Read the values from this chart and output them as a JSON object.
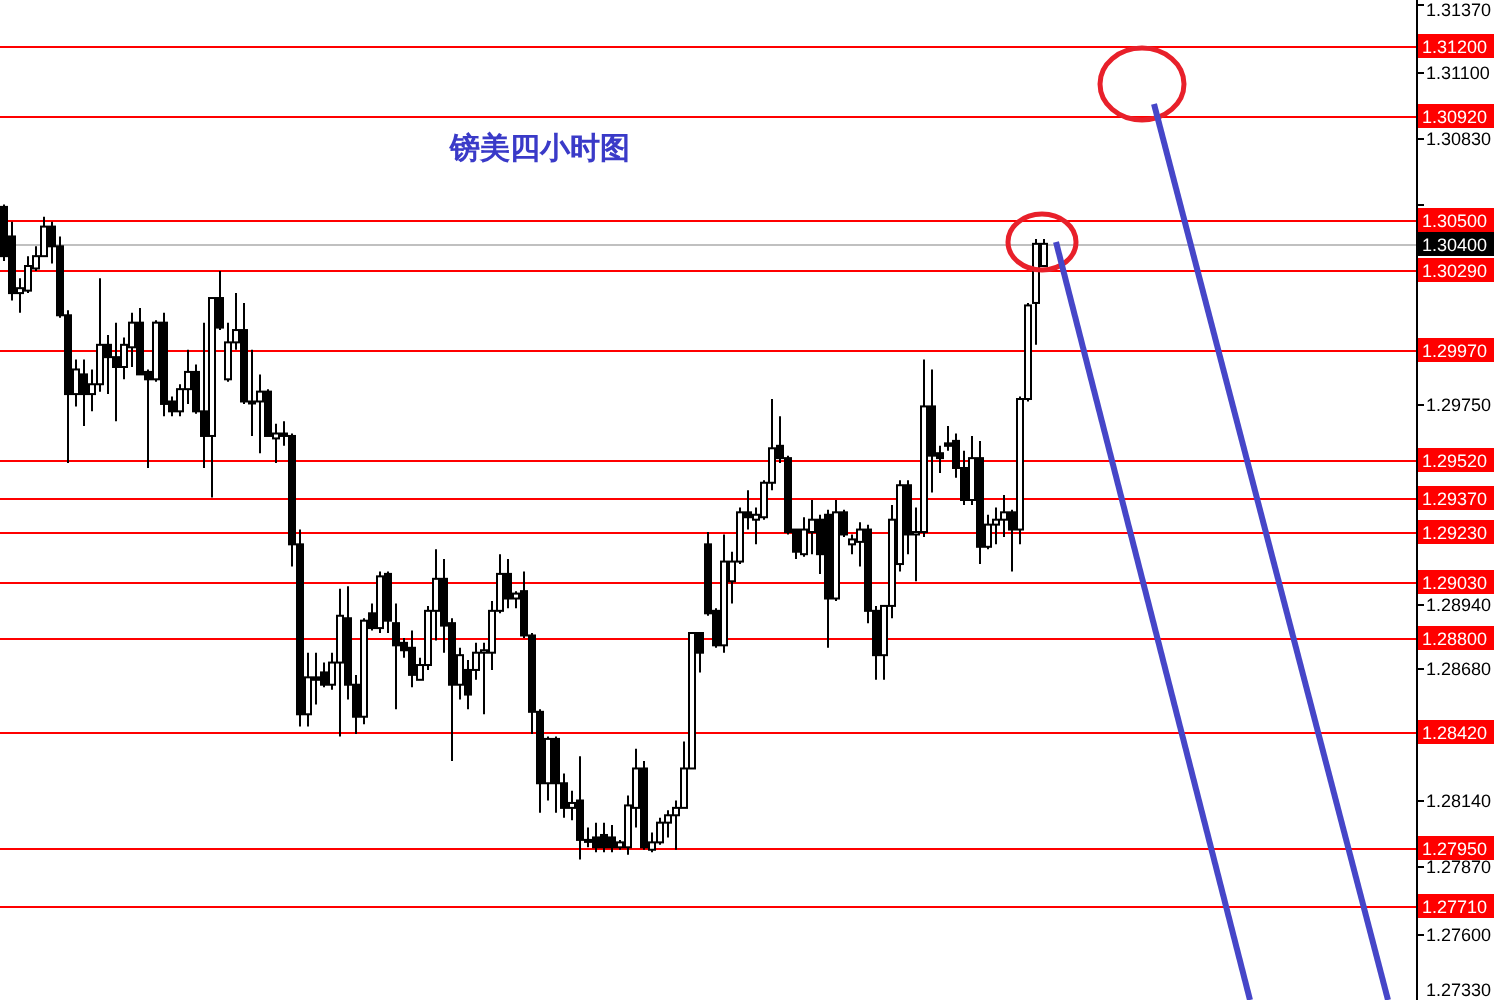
{
  "chart_data": {
    "type": "candlestick",
    "title": "镑美四小时图",
    "tick_labels": "y",
    "categories": [
      null,
      null,
      null,
      null,
      null,
      null,
      null,
      null,
      null,
      null,
      null,
      null,
      null,
      null,
      null,
      null,
      null,
      null,
      null,
      null,
      null,
      null,
      null,
      null,
      null,
      null,
      null,
      null,
      null,
      null,
      null,
      null,
      null,
      null,
      null,
      null,
      null,
      null,
      null,
      null,
      null,
      null,
      null,
      null,
      null,
      null,
      null,
      null,
      null,
      null,
      null,
      null,
      null,
      null,
      null,
      null,
      null,
      null,
      null,
      null,
      null,
      null,
      null,
      null,
      null,
      null,
      null,
      null,
      null,
      null,
      null,
      null,
      null,
      null,
      null,
      null,
      null,
      null,
      null,
      null,
      null,
      null,
      null,
      null,
      null,
      null,
      null,
      null,
      null,
      null,
      null,
      null,
      null,
      null,
      null,
      null,
      null,
      null,
      null,
      null,
      null,
      null,
      null,
      null,
      null,
      null,
      null,
      null,
      null,
      null,
      null,
      null,
      null,
      null,
      null,
      null,
      null,
      null,
      null,
      null,
      null,
      null,
      null,
      null,
      null,
      null,
      null,
      null,
      null,
      null,
      null,
      null,
      null,
      null,
      null,
      null,
      null,
      null,
      null,
      null,
      null,
      null,
      null,
      null,
      null,
      null,
      null,
      null,
      null,
      null,
      null,
      null,
      null,
      null,
      null,
      null,
      null,
      null,
      null,
      null,
      null,
      null,
      null,
      null,
      null,
      null,
      null,
      null,
      null,
      null,
      null,
      null,
      null,
      null,
      null,
      null,
      null
    ],
    "ohlc": [
      [
        1.3055,
        1.3056,
        1.3033,
        1.3035
      ],
      [
        1.3043,
        1.3049,
        1.3017,
        1.302
      ],
      [
        1.302,
        1.3026,
        1.3012,
        1.3022
      ],
      [
        1.3021,
        1.3035,
        1.302,
        1.3031
      ],
      [
        1.303,
        1.3039,
        1.3029,
        1.3035
      ],
      [
        1.3035,
        1.3051,
        1.3035,
        1.3047
      ],
      [
        1.3047,
        1.3049,
        1.3032,
        1.3039
      ],
      [
        1.3039,
        1.3043,
        1.301,
        1.3011
      ],
      [
        1.3011,
        1.3013,
        1.2951,
        1.2979
      ],
      [
        1.2979,
        1.2993,
        1.2974,
        1.2989
      ],
      [
        1.2987,
        1.2993,
        1.2966,
        1.2979
      ],
      [
        1.2979,
        1.2989,
        1.2972,
        1.2983
      ],
      [
        1.2983,
        1.3026,
        1.298,
        1.2999
      ],
      [
        1.2999,
        1.3003,
        1.2979,
        1.2994
      ],
      [
        1.2994,
        1.3008,
        1.2968,
        1.299
      ],
      [
        1.299,
        1.3002,
        1.2985,
        1.2999
      ],
      [
        1.2998,
        1.3012,
        1.299,
        1.3008
      ],
      [
        1.3008,
        1.3014,
        1.2987,
        1.2987
      ],
      [
        1.2988,
        1.2989,
        1.2949,
        1.2985
      ],
      [
        1.2985,
        1.3009,
        1.2984,
        1.3008
      ],
      [
        1.3008,
        1.3012,
        1.297,
        1.2975
      ],
      [
        1.2976,
        1.2978,
        1.297,
        1.2972
      ],
      [
        1.2972,
        1.2983,
        1.297,
        1.2981
      ],
      [
        1.2981,
        1.2997,
        1.2975,
        1.2988
      ],
      [
        1.2988,
        1.2991,
        1.2971,
        1.2972
      ],
      [
        1.2972,
        1.3008,
        1.2949,
        1.2962
      ],
      [
        1.2962,
        1.3018,
        1.2937,
        1.3018
      ],
      [
        1.3018,
        1.3029,
        1.3005,
        1.3006
      ],
      [
        1.2985,
        1.3008,
        1.2984,
        1.3
      ],
      [
        1.3,
        1.302,
        1.2997,
        1.3005
      ],
      [
        1.3005,
        1.3016,
        1.2975,
        1.2976
      ],
      [
        1.2976,
        1.2997,
        1.2962,
        1.2976
      ],
      [
        1.2976,
        1.2987,
        1.2955,
        1.298
      ],
      [
        1.298,
        1.2981,
        1.2962,
        1.2962
      ],
      [
        1.2961,
        1.2967,
        1.2951,
        1.2963
      ],
      [
        1.2963,
        1.2968,
        1.2958,
        1.2962
      ],
      [
        1.2962,
        1.2963,
        1.2909,
        1.2918
      ],
      [
        1.2918,
        1.2924,
        1.2844,
        1.2849
      ],
      [
        1.2849,
        1.2874,
        1.2844,
        1.2864
      ],
      [
        1.2864,
        1.2874,
        1.2853,
        1.2863
      ],
      [
        1.2866,
        1.287,
        1.286,
        1.2861
      ],
      [
        1.2861,
        1.2874,
        1.2859,
        1.287
      ],
      [
        1.287,
        1.29,
        1.284,
        1.2889
      ],
      [
        1.2888,
        1.2901,
        1.2855,
        1.2861
      ],
      [
        1.2861,
        1.2865,
        1.2841,
        1.2848
      ],
      [
        1.2848,
        1.2888,
        1.2845,
        1.2887
      ],
      [
        1.289,
        1.2894,
        1.2883,
        1.2884
      ],
      [
        1.2884,
        1.2907,
        1.2882,
        1.2905
      ],
      [
        1.2906,
        1.2907,
        1.2882,
        1.2887
      ],
      [
        1.2886,
        1.2894,
        1.2851,
        1.2877
      ],
      [
        1.2878,
        1.288,
        1.2872,
        1.2875
      ],
      [
        1.2876,
        1.2883,
        1.286,
        1.2865
      ],
      [
        1.2863,
        1.2872,
        1.2863,
        1.2869
      ],
      [
        1.2869,
        1.2893,
        1.2867,
        1.2891
      ],
      [
        1.2891,
        1.2916,
        1.2879,
        1.2904
      ],
      [
        1.2904,
        1.2912,
        1.2874,
        1.2885
      ],
      [
        1.2886,
        1.2888,
        1.283,
        1.2861
      ],
      [
        1.2861,
        1.2876,
        1.2855,
        1.2873
      ],
      [
        1.2867,
        1.2871,
        1.2851,
        1.2857
      ],
      [
        1.2867,
        1.2878,
        1.2863,
        1.2874
      ],
      [
        1.2874,
        1.2878,
        1.2849,
        1.2875
      ],
      [
        1.2874,
        1.2895,
        1.2867,
        1.2891
      ],
      [
        1.2891,
        1.2914,
        1.289,
        1.2906
      ],
      [
        1.2906,
        1.2912,
        1.2892,
        1.2896
      ],
      [
        1.2896,
        1.2899,
        1.2892,
        1.2898
      ],
      [
        1.2899,
        1.2907,
        1.288,
        1.2881
      ],
      [
        1.2881,
        1.2882,
        1.2841,
        1.285
      ],
      [
        1.285,
        1.2851,
        1.2809,
        1.2821
      ],
      [
        1.2821,
        1.284,
        1.2814,
        1.2839
      ],
      [
        1.2839,
        1.284,
        1.2809,
        1.2821
      ],
      [
        1.2821,
        1.2825,
        1.2807,
        1.2811
      ],
      [
        1.2811,
        1.2818,
        1.2806,
        1.2813
      ],
      [
        1.2814,
        1.2832,
        1.279,
        1.2798
      ],
      [
        1.2798,
        1.2803,
        1.2795,
        1.2798
      ],
      [
        1.2799,
        1.2805,
        1.2793,
        1.2795
      ],
      [
        1.28,
        1.2805,
        1.2793,
        1.2795
      ],
      [
        1.2799,
        1.2804,
        1.2793,
        1.2795
      ],
      [
        1.2795,
        1.2798,
        1.2794,
        1.2797
      ],
      [
        1.2795,
        1.2816,
        1.2792,
        1.2812
      ],
      [
        1.2811,
        1.2835,
        1.2803,
        1.2827
      ],
      [
        1.2827,
        1.283,
        1.2794,
        1.2795
      ],
      [
        1.2794,
        1.2801,
        1.2793,
        1.2797
      ],
      [
        1.2797,
        1.2807,
        1.2796,
        1.2805
      ],
      [
        1.2805,
        1.281,
        1.2799,
        1.2808
      ],
      [
        1.2808,
        1.2814,
        1.2794,
        1.2811
      ],
      [
        1.2811,
        1.2838,
        1.2811,
        1.2827
      ],
      [
        1.2827,
        1.2882,
        1.2827,
        1.2882
      ],
      [
        1.2882,
        1.2882,
        1.2866,
        1.2874
      ],
      [
        1.2918,
        1.2923,
        1.2889,
        1.289
      ],
      [
        1.2891,
        1.2892,
        1.2876,
        1.2877
      ],
      [
        1.2877,
        1.2922,
        1.2874,
        1.2911
      ],
      [
        1.2903,
        1.2915,
        1.2894,
        1.2911
      ],
      [
        1.2911,
        1.2933,
        1.291,
        1.2931
      ],
      [
        1.2931,
        1.294,
        1.2924,
        1.2929
      ],
      [
        1.2928,
        1.2933,
        1.2918,
        1.293
      ],
      [
        1.2929,
        1.2944,
        1.2928,
        1.2943
      ],
      [
        1.2943,
        1.2977,
        1.294,
        1.2957
      ],
      [
        1.2958,
        1.297,
        1.2951,
        1.2953
      ],
      [
        1.2953,
        1.2954,
        1.2922,
        1.2923
      ],
      [
        1.2924,
        1.2924,
        1.2912,
        1.2915
      ],
      [
        1.2914,
        1.2929,
        1.2913,
        1.2924
      ],
      [
        1.2923,
        1.2936,
        1.2914,
        1.2928
      ],
      [
        1.2928,
        1.293,
        1.2906,
        1.2914
      ],
      [
        1.293,
        1.2932,
        1.2876,
        1.2896
      ],
      [
        1.2896,
        1.2936,
        1.2895,
        1.2931
      ],
      [
        1.2931,
        1.2932,
        1.2921,
        1.2922
      ],
      [
        1.2918,
        1.2922,
        1.2914,
        1.292
      ],
      [
        1.2919,
        1.2927,
        1.2909,
        1.2924
      ],
      [
        1.2924,
        1.2926,
        1.2886,
        1.2891
      ],
      [
        1.2891,
        1.2893,
        1.2863,
        1.2873
      ],
      [
        1.2873,
        1.2893,
        1.2863,
        1.2893
      ],
      [
        1.2893,
        1.2934,
        1.2888,
        1.2928
      ],
      [
        1.291,
        1.2944,
        1.2907,
        1.2942
      ],
      [
        1.2942,
        1.2944,
        1.2914,
        1.2922
      ],
      [
        1.2922,
        1.2933,
        1.2903,
        1.2923
      ],
      [
        1.2923,
        1.2993,
        1.2921,
        1.2974
      ],
      [
        1.2974,
        1.2989,
        1.2939,
        1.2954
      ],
      [
        1.2955,
        1.2958,
        1.2947,
        1.2953
      ],
      [
        1.2959,
        1.2966,
        1.2956,
        1.2958
      ],
      [
        1.296,
        1.2963,
        1.2945,
        1.2949
      ],
      [
        1.2949,
        1.2956,
        1.2934,
        1.2936
      ],
      [
        1.2936,
        1.2962,
        1.2934,
        1.2953
      ],
      [
        1.2953,
        1.296,
        1.291,
        1.2917
      ],
      [
        1.2917,
        1.293,
        1.2916,
        1.2926
      ],
      [
        1.2926,
        1.2933,
        1.2918,
        1.2928
      ],
      [
        1.2928,
        1.2938,
        1.2921,
        1.2931
      ],
      [
        1.2931,
        1.2932,
        1.2907,
        1.2924
      ],
      [
        1.2924,
        1.2978,
        1.2918,
        1.2977
      ],
      [
        1.2977,
        1.3016,
        1.2976,
        1.3015
      ],
      [
        1.3016,
        1.3042,
        1.2999,
        1.304
      ],
      [
        1.3031,
        1.3042,
        1.3031,
        1.304
      ],
      null,
      null,
      null,
      null,
      null,
      null,
      null,
      null,
      null,
      null,
      null,
      null,
      null,
      null,
      null,
      null,
      null,
      null,
      null,
      null,
      null,
      null,
      null,
      null,
      null,
      null,
      null,
      null,
      null,
      null,
      null,
      null,
      null,
      null,
      null,
      null,
      null,
      null,
      null,
      null,
      null,
      null,
      null,
      null,
      null,
      null
    ],
    "ylim": [
      1.2733,
      1.3139
    ],
    "yticks": [
      {
        "value": 1.3137,
        "label": "1.31370"
      },
      {
        "value": 1.311,
        "label": "1.31100"
      },
      {
        "value": 1.3083,
        "label": "1.30830"
      },
      {
        "value": 1.3056,
        "label": null
      },
      {
        "value": 1.3002,
        "label": null
      },
      {
        "value": 1.2975,
        "label": "1.29750"
      },
      {
        "value": 1.2948,
        "label": null
      },
      {
        "value": 1.2921,
        "label": null
      },
      {
        "value": 1.2894,
        "label": "1.28940"
      },
      {
        "value": 1.2868,
        "label": "1.28680"
      },
      {
        "value": 1.2841,
        "label": null
      },
      {
        "value": 1.2814,
        "label": "1.28140"
      },
      {
        "value": 1.2787,
        "label": "1.27870"
      },
      {
        "value": 1.276,
        "label": "1.27600"
      },
      {
        "value": 1.2733,
        "label": "1.27330"
      }
    ],
    "ref_lines": [
      {
        "axis": "y",
        "value": 1.312,
        "label": "1.31200",
        "color": "#ff0000"
      },
      {
        "axis": "y",
        "value": 1.3092,
        "label": "1.30920",
        "color": "#ff0000"
      },
      {
        "axis": "y",
        "value": 1.305,
        "label": "1.30500",
        "color": "#ff0000"
      },
      {
        "axis": "y",
        "value": 1.304,
        "label": "1.30400",
        "color": "#c0c0c0"
      },
      {
        "axis": "y",
        "value": 1.3029,
        "label": "1.30290",
        "color": "#ff0000"
      },
      {
        "axis": "y",
        "value": 1.2997,
        "label": "1.29970",
        "color": "#ff0000"
      },
      {
        "axis": "y",
        "value": 1.2952,
        "label": "1.29520",
        "color": "#ff0000"
      },
      {
        "axis": "y",
        "value": 1.2937,
        "label": "1.29370",
        "color": "#ff0000"
      },
      {
        "axis": "y",
        "value": 1.2923,
        "label": "1.29230",
        "color": "#ff0000"
      },
      {
        "axis": "y",
        "value": 1.2903,
        "label": "1.29030",
        "color": "#ff0000"
      },
      {
        "axis": "y",
        "value": 1.288,
        "label": "1.28800",
        "color": "#ff0000"
      },
      {
        "axis": "y",
        "value": 1.2842,
        "label": "1.28420",
        "color": "#ff0000"
      },
      {
        "axis": "y",
        "value": 1.2795,
        "label": "1.27950",
        "color": "#ff0000"
      },
      {
        "axis": "y",
        "value": 1.2771,
        "label": "1.27710",
        "color": "#ff0000"
      }
    ]
  }
}
